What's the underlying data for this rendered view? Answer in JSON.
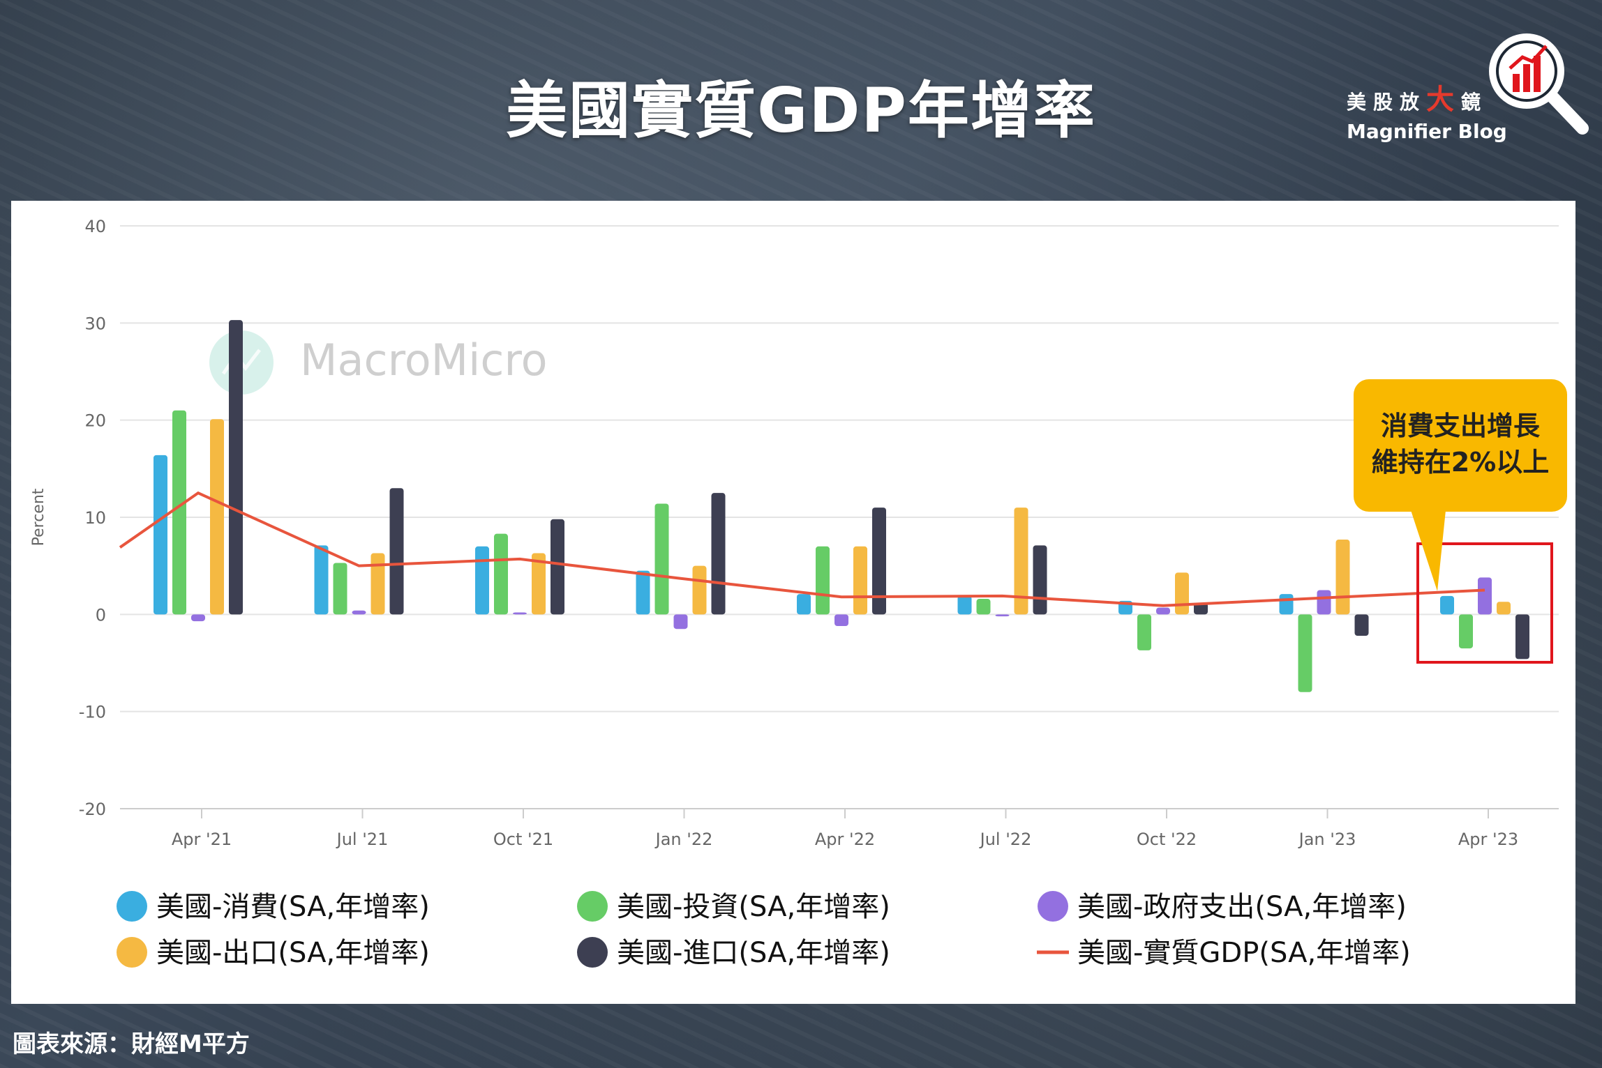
{
  "title": "美國實質GDP年增率",
  "brand": {
    "cn_prefix": "美股放",
    "cn_big": "大",
    "cn_suffix": "鏡",
    "en": "Magnifier Blog"
  },
  "source": "圖表來源：財經M平方",
  "watermark": "MacroMicro",
  "callout": {
    "line1": "消費支出增長",
    "line2": "維持在2%以上"
  },
  "colors": {
    "consumption": "#3aaee0",
    "investment": "#66cc66",
    "government": "#9370e0",
    "exports": "#f5b942",
    "imports": "#3d3f52",
    "gdp": "#e8553d",
    "callout": "#f9b800",
    "highlight_box": "#e0161c"
  },
  "chart_data": {
    "type": "bar",
    "ylabel": "Percent",
    "ylim": [
      -20,
      40
    ],
    "yticks": [
      -20,
      -10,
      0,
      10,
      20,
      30,
      40
    ],
    "grid": true,
    "legend_position": "bottom",
    "categories": [
      "Apr '21",
      "Jul '21",
      "Oct '21",
      "Jan '22",
      "Apr '22",
      "Jul '22",
      "Oct '22",
      "Jan '23",
      "Apr '23"
    ],
    "series": [
      {
        "name": "美國-消費(SA,年增率)",
        "color_key": "consumption",
        "values": [
          16.4,
          7.1,
          7.0,
          4.5,
          2.1,
          1.9,
          1.4,
          2.1,
          1.9
        ]
      },
      {
        "name": "美國-投資(SA,年增率)",
        "color_key": "investment",
        "values": [
          21.0,
          5.3,
          8.3,
          11.4,
          7.0,
          1.6,
          -3.7,
          -8.0,
          -3.5
        ]
      },
      {
        "name": "美國-政府支出(SA,年增率)",
        "color_key": "government",
        "values": [
          -0.7,
          0.4,
          0.2,
          -1.5,
          -1.2,
          -0.2,
          0.7,
          2.5,
          3.8
        ]
      },
      {
        "name": "美國-出口(SA,年增率)",
        "color_key": "exports",
        "values": [
          20.1,
          6.3,
          6.3,
          5.0,
          7.0,
          11.0,
          4.3,
          7.7,
          1.3
        ]
      },
      {
        "name": "美國-進口(SA,年增率)",
        "color_key": "imports",
        "values": [
          30.3,
          13.0,
          9.8,
          12.5,
          11.0,
          7.1,
          1.2,
          -2.2,
          -4.6
        ]
      },
      {
        "name": "美國-實質GDP(SA,年增率)",
        "color_key": "gdp",
        "type": "line",
        "x_start": "Jan '21",
        "x_start_value": 6.9,
        "values": [
          12.5,
          5.0,
          5.7,
          3.7,
          1.8,
          1.9,
          0.9,
          1.7,
          2.5
        ]
      }
    ]
  }
}
